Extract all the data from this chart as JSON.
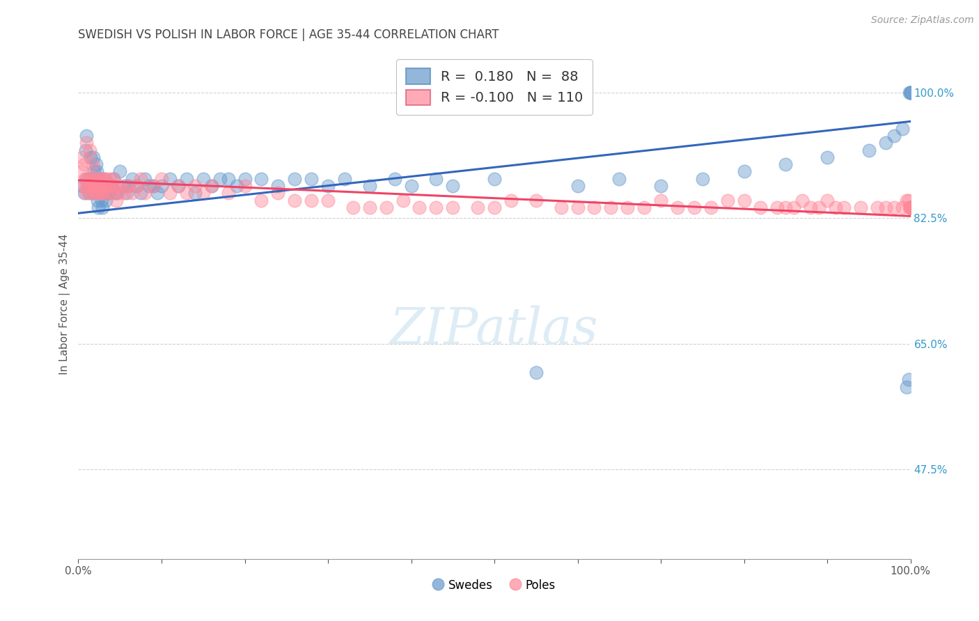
{
  "title": "SWEDISH VS POLISH IN LABOR FORCE | AGE 35-44 CORRELATION CHART",
  "source": "Source: ZipAtlas.com",
  "ylabel": "In Labor Force | Age 35-44",
  "xlim": [
    0.0,
    1.0
  ],
  "ylim": [
    0.35,
    1.06
  ],
  "ytick_positions": [
    0.475,
    0.65,
    0.825,
    1.0
  ],
  "ytick_labels": [
    "47.5%",
    "65.0%",
    "82.5%",
    "100.0%"
  ],
  "swedes_color": "#6699cc",
  "poles_color": "#ff8899",
  "swedes_R": 0.18,
  "swedes_N": 88,
  "poles_R": -0.1,
  "poles_N": 110,
  "legend_swedes": "Swedes",
  "legend_poles": "Poles",
  "swedes_x": [
    0.005,
    0.007,
    0.009,
    0.01,
    0.01,
    0.012,
    0.013,
    0.015,
    0.015,
    0.017,
    0.018,
    0.018,
    0.019,
    0.02,
    0.02,
    0.021,
    0.022,
    0.023,
    0.023,
    0.024,
    0.025,
    0.026,
    0.027,
    0.028,
    0.029,
    0.03,
    0.031,
    0.032,
    0.033,
    0.035,
    0.036,
    0.038,
    0.04,
    0.042,
    0.044,
    0.046,
    0.05,
    0.055,
    0.058,
    0.06,
    0.065,
    0.07,
    0.075,
    0.08,
    0.085,
    0.09,
    0.095,
    0.1,
    0.11,
    0.12,
    0.13,
    0.14,
    0.15,
    0.16,
    0.17,
    0.18,
    0.19,
    0.2,
    0.22,
    0.24,
    0.26,
    0.28,
    0.3,
    0.32,
    0.35,
    0.38,
    0.4,
    0.43,
    0.45,
    0.5,
    0.55,
    0.6,
    0.65,
    0.7,
    0.75,
    0.8,
    0.85,
    0.9,
    0.95,
    0.97,
    0.98,
    0.99,
    0.995,
    0.998,
    0.999,
    1.0,
    1.0,
    1.0
  ],
  "swedes_y": [
    0.87,
    0.86,
    0.92,
    0.88,
    0.94,
    0.87,
    0.86,
    0.91,
    0.88,
    0.87,
    0.86,
    0.91,
    0.89,
    0.88,
    0.87,
    0.9,
    0.89,
    0.87,
    0.85,
    0.84,
    0.88,
    0.87,
    0.86,
    0.85,
    0.84,
    0.87,
    0.88,
    0.86,
    0.85,
    0.87,
    0.86,
    0.87,
    0.87,
    0.88,
    0.86,
    0.86,
    0.89,
    0.87,
    0.86,
    0.87,
    0.88,
    0.87,
    0.86,
    0.88,
    0.87,
    0.87,
    0.86,
    0.87,
    0.88,
    0.87,
    0.88,
    0.86,
    0.88,
    0.87,
    0.88,
    0.88,
    0.87,
    0.88,
    0.88,
    0.87,
    0.88,
    0.88,
    0.87,
    0.88,
    0.87,
    0.88,
    0.87,
    0.88,
    0.87,
    0.88,
    0.61,
    0.87,
    0.88,
    0.87,
    0.88,
    0.89,
    0.9,
    0.91,
    0.92,
    0.93,
    0.94,
    0.95,
    0.59,
    0.6,
    1.0,
    1.0,
    1.0,
    1.0
  ],
  "poles_x": [
    0.004,
    0.005,
    0.006,
    0.007,
    0.008,
    0.009,
    0.01,
    0.01,
    0.011,
    0.012,
    0.013,
    0.014,
    0.015,
    0.016,
    0.017,
    0.018,
    0.019,
    0.02,
    0.021,
    0.022,
    0.023,
    0.024,
    0.025,
    0.026,
    0.027,
    0.028,
    0.029,
    0.03,
    0.031,
    0.032,
    0.033,
    0.035,
    0.037,
    0.039,
    0.04,
    0.042,
    0.044,
    0.046,
    0.048,
    0.05,
    0.055,
    0.06,
    0.065,
    0.07,
    0.075,
    0.08,
    0.09,
    0.1,
    0.11,
    0.12,
    0.13,
    0.14,
    0.15,
    0.16,
    0.18,
    0.2,
    0.22,
    0.24,
    0.26,
    0.28,
    0.3,
    0.33,
    0.35,
    0.37,
    0.39,
    0.41,
    0.43,
    0.45,
    0.48,
    0.5,
    0.52,
    0.55,
    0.58,
    0.6,
    0.62,
    0.64,
    0.66,
    0.68,
    0.7,
    0.72,
    0.74,
    0.76,
    0.78,
    0.8,
    0.82,
    0.84,
    0.85,
    0.86,
    0.87,
    0.88,
    0.89,
    0.9,
    0.91,
    0.92,
    0.94,
    0.96,
    0.97,
    0.98,
    0.99,
    0.995,
    0.998,
    0.999,
    1.0,
    1.0,
    1.0,
    1.0,
    1.0,
    1.0,
    1.0,
    1.0
  ],
  "poles_y": [
    0.89,
    0.91,
    0.87,
    0.9,
    0.88,
    0.86,
    0.93,
    0.87,
    0.88,
    0.86,
    0.88,
    0.92,
    0.87,
    0.88,
    0.9,
    0.86,
    0.87,
    0.88,
    0.86,
    0.87,
    0.88,
    0.87,
    0.86,
    0.88,
    0.87,
    0.86,
    0.88,
    0.86,
    0.87,
    0.88,
    0.86,
    0.87,
    0.88,
    0.87,
    0.86,
    0.88,
    0.87,
    0.85,
    0.86,
    0.87,
    0.86,
    0.87,
    0.86,
    0.87,
    0.88,
    0.86,
    0.87,
    0.88,
    0.86,
    0.87,
    0.86,
    0.87,
    0.86,
    0.87,
    0.86,
    0.87,
    0.85,
    0.86,
    0.85,
    0.85,
    0.85,
    0.84,
    0.84,
    0.84,
    0.85,
    0.84,
    0.84,
    0.84,
    0.84,
    0.84,
    0.85,
    0.85,
    0.84,
    0.84,
    0.84,
    0.84,
    0.84,
    0.84,
    0.85,
    0.84,
    0.84,
    0.84,
    0.85,
    0.85,
    0.84,
    0.84,
    0.84,
    0.84,
    0.85,
    0.84,
    0.84,
    0.85,
    0.84,
    0.84,
    0.84,
    0.84,
    0.84,
    0.84,
    0.84,
    0.85,
    0.85,
    0.84,
    0.84,
    0.84,
    0.84,
    0.84,
    0.84,
    0.84,
    0.84,
    0.84
  ],
  "sw_trend_x0": 0.0,
  "sw_trend_y0": 0.832,
  "sw_trend_x1": 1.0,
  "sw_trend_y1": 0.96,
  "po_trend_x0": 0.0,
  "po_trend_y0": 0.878,
  "po_trend_x1": 1.0,
  "po_trend_y1": 0.828
}
